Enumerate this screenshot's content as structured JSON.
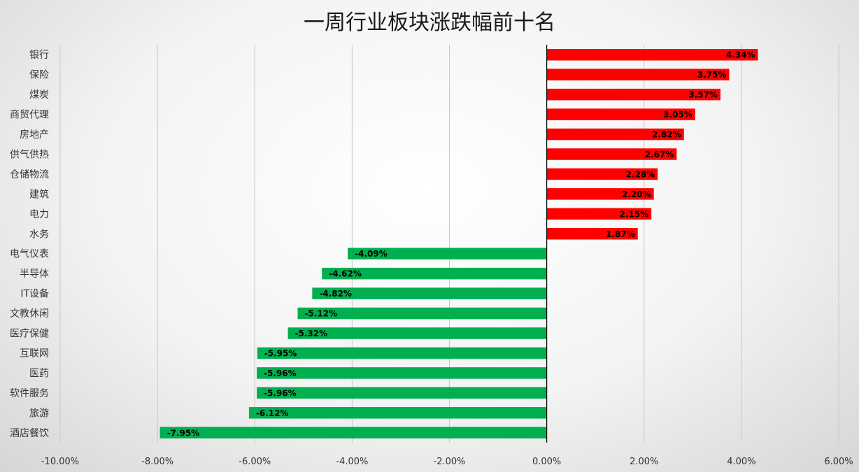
{
  "chart_data": {
    "type": "bar",
    "orientation": "horizontal",
    "title": "一周行业板块涨跌幅前十名",
    "categories": [
      "银行",
      "保险",
      "煤炭",
      "商贸代理",
      "房地产",
      "供气供热",
      "仓储物流",
      "建筑",
      "电力",
      "水务",
      "电气仪表",
      "半导体",
      "IT设备",
      "文教休闲",
      "医疗保健",
      "互联网",
      "医药",
      "软件服务",
      "旅游",
      "酒店餐饮"
    ],
    "values": [
      4.34,
      3.75,
      3.57,
      3.05,
      2.82,
      2.67,
      2.28,
      2.2,
      2.15,
      1.87,
      -4.09,
      -4.62,
      -4.82,
      -5.12,
      -5.32,
      -5.95,
      -5.96,
      -5.96,
      -6.12,
      -7.95
    ],
    "data_labels": [
      "4.34%",
      "3.75%",
      "3.57%",
      "3.05%",
      "2.82%",
      "2.67%",
      "2.28%",
      "2.20%",
      "2.15%",
      "1.87%",
      "-4.09%",
      "-4.62%",
      "-4.82%",
      "-5.12%",
      "-5.32%",
      "-5.95%",
      "-5.96%",
      "-5.96%",
      "-6.12%",
      "-7.95%"
    ],
    "xlim": [
      -10,
      6
    ],
    "x_ticks": [
      -10,
      -8,
      -6,
      -4,
      -2,
      0,
      2,
      4,
      6
    ],
    "x_tick_labels": [
      "-10.00%",
      "-8.00%",
      "-6.00%",
      "-4.00%",
      "-2.00%",
      "0.00%",
      "2.00%",
      "4.00%",
      "6.00%"
    ],
    "grid": "vertical",
    "legend": "none",
    "colors": {
      "positive": "#ff0000",
      "negative": "#00b050"
    }
  }
}
